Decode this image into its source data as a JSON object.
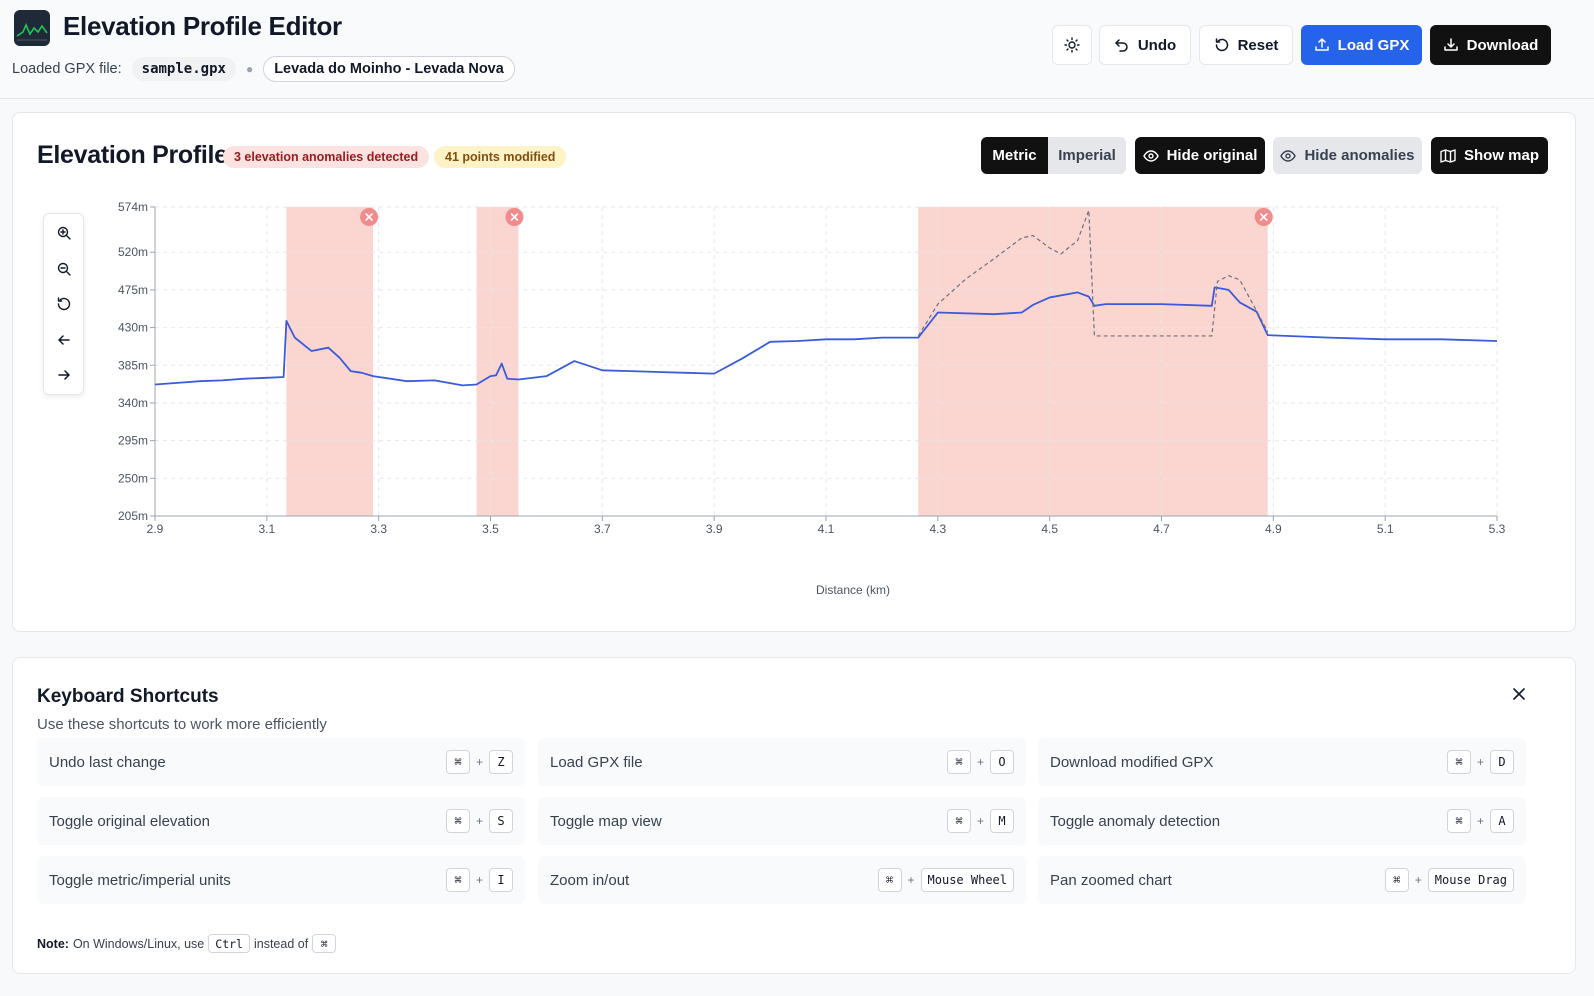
{
  "header": {
    "title": "Elevation Profile Editor",
    "file_label": "Loaded GPX file:",
    "file_name": "sample.gpx",
    "route_name": "Levada do Moinho - Levada Nova",
    "theme_icon": "sun-icon",
    "buttons": {
      "undo": "Undo",
      "reset": "Reset",
      "load": "Load GPX",
      "download": "Download"
    },
    "colors": {
      "primary": "#2563eb",
      "dark": "#111111"
    }
  },
  "profile": {
    "title": "Elevation Profile",
    "anomalies_badge": "3 elevation anomalies detected",
    "modified_badge": "41 points modified",
    "units": {
      "metric": "Metric",
      "imperial": "Imperial",
      "selected": "Metric"
    },
    "buttons": {
      "hide_original": "Hide original",
      "hide_anomalies": "Hide anomalies",
      "show_map": "Show map"
    },
    "zoom_controls": [
      "zoom-in-icon",
      "zoom-out-icon",
      "reset-zoom-icon",
      "pan-left-icon",
      "pan-right-icon"
    ]
  },
  "chart_data": {
    "type": "line",
    "xlabel": "Distance (km)",
    "ylabel": "",
    "xlim": [
      2.9,
      5.3
    ],
    "ylim": [
      205,
      574
    ],
    "x_ticks": [
      "2.9",
      "3.1",
      "3.3",
      "3.5",
      "3.7",
      "3.9",
      "4.1",
      "4.3",
      "4.5",
      "4.7",
      "4.9",
      "5.1",
      "5.3"
    ],
    "y_ticks": [
      "205m",
      "250m",
      "295m",
      "340m",
      "385m",
      "430m",
      "475m",
      "520m",
      "574m"
    ],
    "grid": true,
    "colors": {
      "modified": "#3b5bdb",
      "original": "#6b7280",
      "anomaly_band": "#fbd5d0",
      "anomaly_marker": "#f08c8c"
    },
    "anomaly_ranges": [
      [
        3.135,
        3.29
      ],
      [
        3.475,
        3.55
      ],
      [
        4.265,
        4.89
      ]
    ],
    "series": [
      {
        "style": "solid",
        "x": [
          2.9,
          2.94,
          2.98,
          3.02,
          3.06,
          3.1,
          3.13,
          3.135,
          3.15,
          3.18,
          3.21,
          3.23,
          3.25,
          3.27,
          3.29,
          3.35,
          3.4,
          3.45,
          3.475,
          3.5,
          3.51,
          3.52,
          3.53,
          3.55,
          3.6,
          3.65,
          3.7,
          3.75,
          3.8,
          3.85,
          3.9,
          3.95,
          4.0,
          4.05,
          4.1,
          4.15,
          4.2,
          4.265,
          4.3,
          4.4,
          4.45,
          4.47,
          4.5,
          4.55,
          4.57,
          4.58,
          4.6,
          4.7,
          4.79,
          4.795,
          4.82,
          4.84,
          4.87,
          4.89,
          5.0,
          5.1,
          5.2,
          5.3
        ],
        "y": [
          362,
          364,
          366,
          367,
          369,
          370,
          371,
          438,
          418,
          402,
          406,
          394,
          378,
          376,
          372,
          366,
          367,
          361,
          362,
          372,
          373,
          387,
          369,
          368,
          372,
          390,
          379,
          378,
          377,
          376,
          375,
          393,
          413,
          414,
          416,
          416,
          418,
          418,
          448,
          446,
          448,
          457,
          466,
          472,
          467,
          456,
          458,
          458,
          456,
          478,
          475,
          460,
          449,
          421,
          418,
          416,
          416,
          414
        ]
      },
      {
        "style": "dashed",
        "x": [
          4.265,
          4.3,
          4.35,
          4.4,
          4.45,
          4.47,
          4.5,
          4.52,
          4.55,
          4.57,
          4.58,
          4.6,
          4.7,
          4.79,
          4.8,
          4.82,
          4.84,
          4.87,
          4.89
        ],
        "y": [
          420,
          458,
          488,
          512,
          537,
          540,
          525,
          518,
          534,
          570,
          420,
          420,
          420,
          420,
          485,
          492,
          487,
          450,
          425
        ]
      }
    ]
  },
  "shortcuts": {
    "title": "Keyboard Shortcuts",
    "subtitle": "Use these shortcuts to work more efficiently",
    "items": [
      {
        "label": "Undo last change",
        "mod": "⌘",
        "key": "Z"
      },
      {
        "label": "Load GPX file",
        "mod": "⌘",
        "key": "O"
      },
      {
        "label": "Download modified GPX",
        "mod": "⌘",
        "key": "D"
      },
      {
        "label": "Toggle original elevation",
        "mod": "⌘",
        "key": "S"
      },
      {
        "label": "Toggle map view",
        "mod": "⌘",
        "key": "M"
      },
      {
        "label": "Toggle anomaly detection",
        "mod": "⌘",
        "key": "A"
      },
      {
        "label": "Toggle metric/imperial units",
        "mod": "⌘",
        "key": "I"
      },
      {
        "label": "Zoom in/out",
        "mod": "⌘",
        "key": "Mouse Wheel"
      },
      {
        "label": "Pan zoomed chart",
        "mod": "⌘",
        "key": "Mouse Drag"
      }
    ],
    "note_label": "Note:",
    "note_text": "On Windows/Linux, use",
    "note_ctrl": "Ctrl",
    "note_instead": "instead of",
    "note_cmd": "⌘"
  }
}
